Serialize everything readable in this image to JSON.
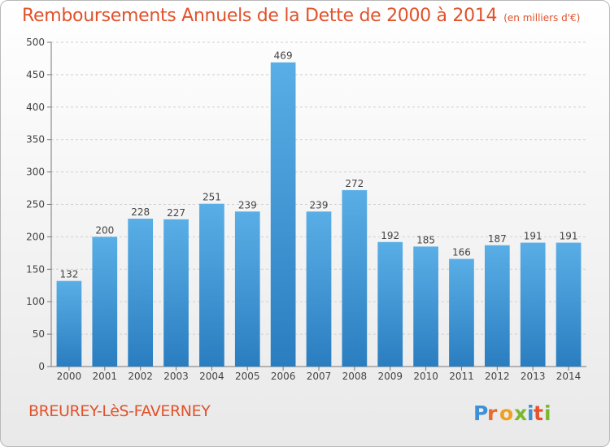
{
  "header": {
    "title": "Remboursements Annuels de la Dette de 2000 à 2014",
    "unit": "(en milliers d'€)"
  },
  "footer": {
    "commune": "BREUREY-LèS-FAVERNEY",
    "logo": "Proxiti"
  },
  "colors": {
    "title": "#e0522b",
    "bar_top": "#5aaee6",
    "bar_bottom": "#2a7ec0",
    "grid": "#cfcfcf"
  },
  "chart_data": {
    "type": "bar",
    "title": "Remboursements Annuels de la Dette de 2000 à 2014",
    "subtitle": "(en milliers d'€)",
    "xlabel": "",
    "ylabel": "",
    "categories": [
      "2000",
      "2001",
      "2002",
      "2003",
      "2004",
      "2005",
      "2006",
      "2007",
      "2008",
      "2009",
      "2010",
      "2011",
      "2012",
      "2013",
      "2014"
    ],
    "values": [
      132,
      200,
      228,
      227,
      251,
      239,
      469,
      239,
      272,
      192,
      185,
      166,
      187,
      191,
      191
    ],
    "ylim": [
      0,
      500
    ],
    "yticks": [
      0,
      50,
      100,
      150,
      200,
      250,
      300,
      350,
      400,
      450,
      500
    ],
    "grid": true,
    "data_labels": true,
    "legend": "none"
  }
}
